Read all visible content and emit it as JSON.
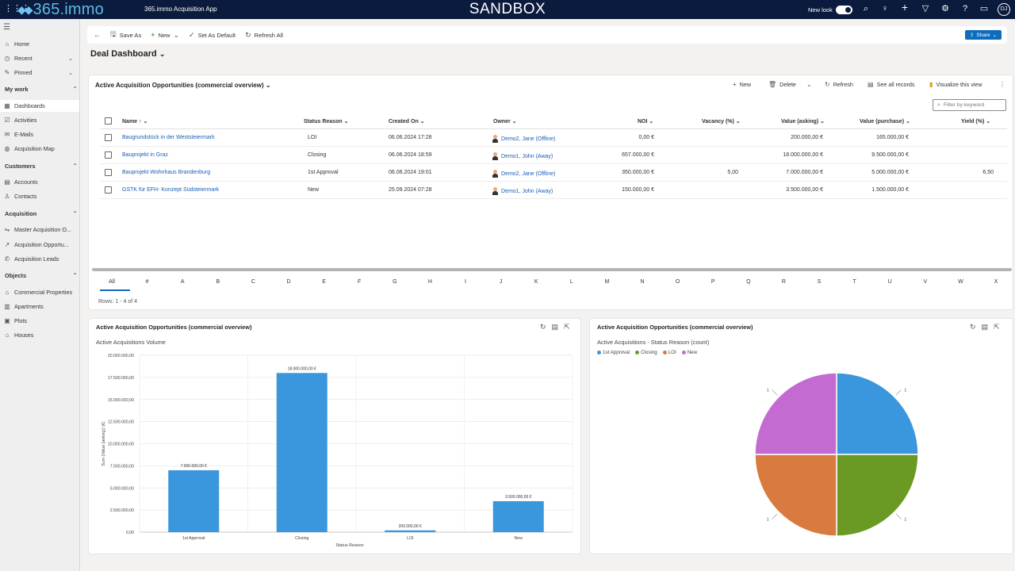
{
  "topbar": {
    "logo_text": "365.immo",
    "app_name": "365.immo Acquisition App",
    "environment": "SANDBOX",
    "new_look_label": "New look",
    "avatar_initials": "DJ"
  },
  "sidebar": {
    "home": "Home",
    "recent": "Recent",
    "pinned": "Pinned",
    "groups": [
      {
        "label": "My work",
        "items": [
          "Dashboards",
          "Activities",
          "E-Mails",
          "Acquisition Map"
        ]
      },
      {
        "label": "Customers",
        "items": [
          "Accounts",
          "Contacts"
        ]
      },
      {
        "label": "Acquisition",
        "items": [
          "Master Acquisition O...",
          "Acquisition Opportu...",
          "Acquisition Leads"
        ]
      },
      {
        "label": "Objects",
        "items": [
          "Commercial Properties",
          "Apartments",
          "Plots",
          "Houses"
        ]
      }
    ]
  },
  "commandbar": {
    "save_as": "Save As",
    "new": "New",
    "set_default": "Set As Default",
    "refresh_all": "Refresh All",
    "share": "Share"
  },
  "dashboard": {
    "title": "Deal Dashboard"
  },
  "grid": {
    "title": "Active Acquisition Opportunities (commercial overview)",
    "commands": {
      "new": "New",
      "delete": "Delete",
      "refresh": "Refresh",
      "see_all": "See all records",
      "visualize": "Visualize this view"
    },
    "filter_placeholder": "Filter by keyword",
    "columns": [
      "Name",
      "Status Reason",
      "Created On",
      "Owner",
      "NOI",
      "Vacancy (%)",
      "Value (asking)",
      "Value (purchase)",
      "Yield (%)"
    ],
    "rows": [
      {
        "name": "Baugrundstück in der Weststeiermark",
        "status": "LOI",
        "created": "06.06.2024 17:28",
        "owner": "Demo2, Jane (Offline)",
        "noi": "0,00 €",
        "vacancy": "",
        "asking": "200.000,00 €",
        "purchase": "165.000,00 €",
        "yield": ""
      },
      {
        "name": "Bauprojekt in Graz",
        "status": "Closing",
        "created": "06.06.2024 18:59",
        "owner": "Demo1, John (Away)",
        "noi": "657.000,00 €",
        "vacancy": "",
        "asking": "18.000.000,00 €",
        "purchase": "9.500.000,00 €",
        "yield": ""
      },
      {
        "name": "Bauprojekt Wohnhaus Brandenburg",
        "status": "1st Approval",
        "created": "06.06.2024 19:01",
        "owner": "Demo2, Jane (Offline)",
        "noi": "350.000,00 €",
        "vacancy": "5,00",
        "asking": "7.000.000,00 €",
        "purchase": "5.000.000,00 €",
        "yield": "6,50"
      },
      {
        "name": "GSTK für EFH- Konzept Südsteiermark",
        "status": "New",
        "created": "25.09.2024 07:28",
        "owner": "Demo1, John (Away)",
        "noi": "150.000,00 €",
        "vacancy": "",
        "asking": "3.500.000,00 €",
        "purchase": "1.500.000,00 €",
        "yield": ""
      }
    ],
    "alphabet": [
      "All",
      "#",
      "A",
      "B",
      "C",
      "D",
      "E",
      "F",
      "G",
      "H",
      "I",
      "J",
      "K",
      "L",
      "M",
      "N",
      "O",
      "P",
      "Q",
      "R",
      "S",
      "T",
      "U",
      "V",
      "W",
      "X"
    ],
    "rows_count": "Rows: 1 - 4 of 4"
  },
  "chart_data": [
    {
      "type": "bar",
      "card_title": "Active Acquisition Opportunities (commercial overview)",
      "title": "Active Acquisitions Volume",
      "xlabel": "Status Reason",
      "ylabel": "Sum (Value (asking)) (€)",
      "categories": [
        "1st Approval",
        "Closing",
        "LOI",
        "New"
      ],
      "values": [
        7000000,
        18000000,
        200000,
        3500000
      ],
      "value_labels": [
        "7.000.000,00 €",
        "18.000.000,00 €",
        "200.000,00 €",
        "3.500.000,00 €"
      ],
      "ylim": [
        0,
        20000000
      ],
      "yticks": [
        "0,00",
        "2.500.000,00",
        "5.000.000,00",
        "7.500.000,00",
        "10.000.000,00",
        "12.500.000,00",
        "15.000.000,00",
        "17.500.000,00",
        "20.000.000,00"
      ],
      "color": "#3a96dd",
      "grid": true
    },
    {
      "type": "pie",
      "card_title": "Active Acquisition Opportunities (commercial overview)",
      "title": "Active Acquisitions - Status Reason (count)",
      "categories": [
        "1st Approval",
        "Closing",
        "LOI",
        "New"
      ],
      "values": [
        1,
        1,
        1,
        1
      ],
      "colors": [
        "#3a96dd",
        "#6a9a23",
        "#d97a3e",
        "#c36bd1"
      ],
      "legend": "top-left"
    }
  ]
}
